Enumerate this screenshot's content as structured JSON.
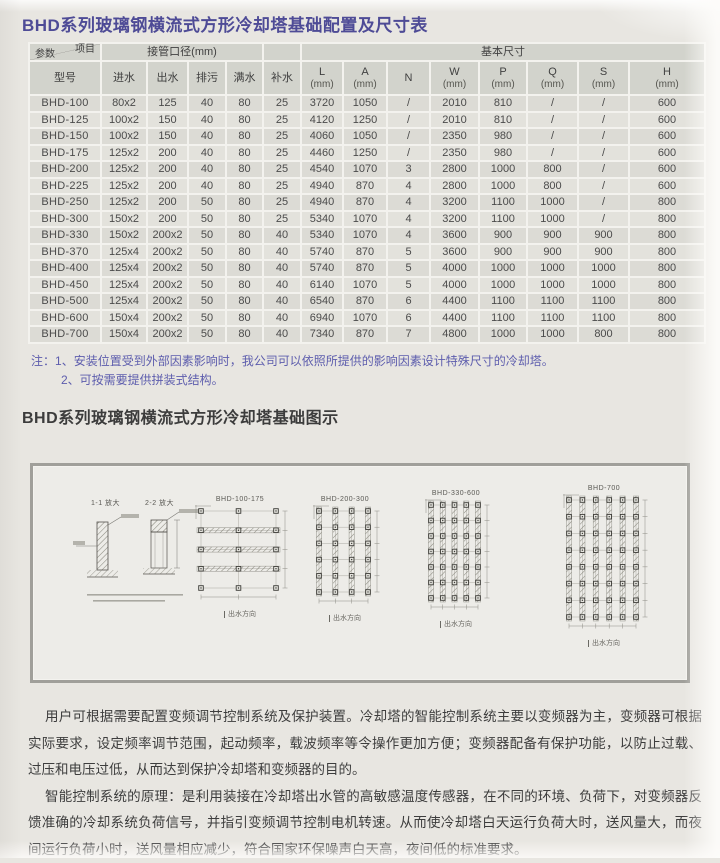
{
  "page": {
    "title_table": "BHD系列玻璃钢横流式方形冷却塔基础配置及尺寸表",
    "title_diagram": "BHD系列玻璃钢横流式方形冷却塔基础图示"
  },
  "colors": {
    "accent_title": "#4e4b96",
    "notes": "#5d5dad",
    "text": "#3d3d3d",
    "table_text": "#4b4b4b",
    "cell_a": "#dcdbd5",
    "cell_b": "#e3e2dc",
    "header_cell": "#d2d3cc",
    "page_bg": "#e8e6e1"
  },
  "table": {
    "corner": {
      "project": "项目",
      "param": "参数"
    },
    "model_header": "型号",
    "group_pipe": "接管口径(mm)",
    "group_basic": "基本尺寸",
    "columns": [
      {
        "label": "进水",
        "unit": ""
      },
      {
        "label": "出水",
        "unit": ""
      },
      {
        "label": "排污",
        "unit": ""
      },
      {
        "label": "满水",
        "unit": ""
      },
      {
        "label": "补水",
        "unit": ""
      },
      {
        "label": "L",
        "unit": "(mm)"
      },
      {
        "label": "A",
        "unit": "(mm)"
      },
      {
        "label": "N",
        "unit": ""
      },
      {
        "label": "W",
        "unit": "(mm)"
      },
      {
        "label": "P",
        "unit": "(mm)"
      },
      {
        "label": "Q",
        "unit": "(mm)"
      },
      {
        "label": "S",
        "unit": "(mm)"
      },
      {
        "label": "H",
        "unit": "(mm)"
      }
    ],
    "rows": [
      [
        "BHD-100",
        "80x2",
        "125",
        "40",
        "80",
        "25",
        "3720",
        "1050",
        "/",
        "2010",
        "810",
        "/",
        "/",
        "600"
      ],
      [
        "BHD-125",
        "100x2",
        "150",
        "40",
        "80",
        "25",
        "4120",
        "1250",
        "/",
        "2010",
        "810",
        "/",
        "/",
        "600"
      ],
      [
        "BHD-150",
        "100x2",
        "150",
        "40",
        "80",
        "25",
        "4060",
        "1050",
        "/",
        "2350",
        "980",
        "/",
        "/",
        "600"
      ],
      [
        "BHD-175",
        "125x2",
        "200",
        "40",
        "80",
        "25",
        "4460",
        "1250",
        "/",
        "2350",
        "980",
        "/",
        "/",
        "600"
      ],
      [
        "BHD-200",
        "125x2",
        "200",
        "40",
        "80",
        "25",
        "4540",
        "1070",
        "3",
        "2800",
        "1000",
        "800",
        "/",
        "600"
      ],
      [
        "BHD-225",
        "125x2",
        "200",
        "40",
        "80",
        "25",
        "4940",
        "870",
        "4",
        "2800",
        "1000",
        "800",
        "/",
        "600"
      ],
      [
        "BHD-250",
        "125x2",
        "200",
        "50",
        "80",
        "25",
        "4940",
        "870",
        "4",
        "3200",
        "1100",
        "1000",
        "/",
        "800"
      ],
      [
        "BHD-300",
        "150x2",
        "200",
        "50",
        "80",
        "25",
        "5340",
        "1070",
        "4",
        "3200",
        "1100",
        "1000",
        "/",
        "800"
      ],
      [
        "BHD-330",
        "150x2",
        "200x2",
        "50",
        "80",
        "40",
        "5340",
        "1070",
        "4",
        "3600",
        "900",
        "900",
        "900",
        "800"
      ],
      [
        "BHD-370",
        "125x4",
        "200x2",
        "50",
        "80",
        "40",
        "5740",
        "870",
        "5",
        "3600",
        "900",
        "900",
        "900",
        "800"
      ],
      [
        "BHD-400",
        "125x4",
        "200x2",
        "50",
        "80",
        "40",
        "5740",
        "870",
        "5",
        "4000",
        "1000",
        "1000",
        "1000",
        "800"
      ],
      [
        "BHD-450",
        "125x4",
        "200x2",
        "50",
        "80",
        "40",
        "6140",
        "1070",
        "5",
        "4000",
        "1000",
        "1000",
        "1000",
        "800"
      ],
      [
        "BHD-500",
        "125x4",
        "200x2",
        "50",
        "80",
        "40",
        "6540",
        "870",
        "6",
        "4400",
        "1100",
        "1100",
        "1100",
        "800"
      ],
      [
        "BHD-600",
        "150x4",
        "200x2",
        "50",
        "80",
        "40",
        "6940",
        "1070",
        "6",
        "4400",
        "1100",
        "1100",
        "1100",
        "800"
      ],
      [
        "BHD-700",
        "150x4",
        "200x2",
        "50",
        "80",
        "40",
        "7340",
        "870",
        "7",
        "4800",
        "1000",
        "1000",
        "800",
        "800"
      ]
    ]
  },
  "notes": {
    "prefix": "注：",
    "line1": "1、安装位置受到外部因素影响时，我公司可以依照所提供的影响因素设计特殊尺寸的冷却塔。",
    "line2": "2、可按需要提供拼装式结构。"
  },
  "diagram": {
    "section1_label": "1-1 放大",
    "section2_label": "2-2 放大",
    "outlet_caption": "出水方向",
    "plans": [
      {
        "label": "BHD-100-175",
        "cols": 3,
        "rows": 5,
        "strips": "h"
      },
      {
        "label": "BHD-200-300",
        "cols": 4,
        "rows": 6,
        "strips": "v"
      },
      {
        "label": "BHD-330-600",
        "cols": 5,
        "rows": 7,
        "strips": "v"
      },
      {
        "label": "BHD-700",
        "cols": 6,
        "rows": 8,
        "strips": "v"
      }
    ]
  },
  "body_text": {
    "p1": "用户可根据需要配置变频调节控制系统及保护装置。冷却塔的智能控制系统主要以变频器为主，变频器可根据实际要求，设定频率调节范围，起动频率，载波频率等令操作更加方便；变频器配备有保护功能，以防止过载、过压和电压过低，从而达到保护冷却塔和变频器的目的。",
    "p2": "智能控制系统的原理：是利用装接在冷却塔出水管的高敏感温度传感器，在不同的环境、负荷下，对变频器反馈准确的冷却系统负荷信号，并指引变频调节控制电机转速。从而使冷却塔白天运行负荷大时，送风量大，而夜间运行负荷小时，送风量相应减少，符合国家环保噪声白天高，夜间低的标准要求。"
  }
}
